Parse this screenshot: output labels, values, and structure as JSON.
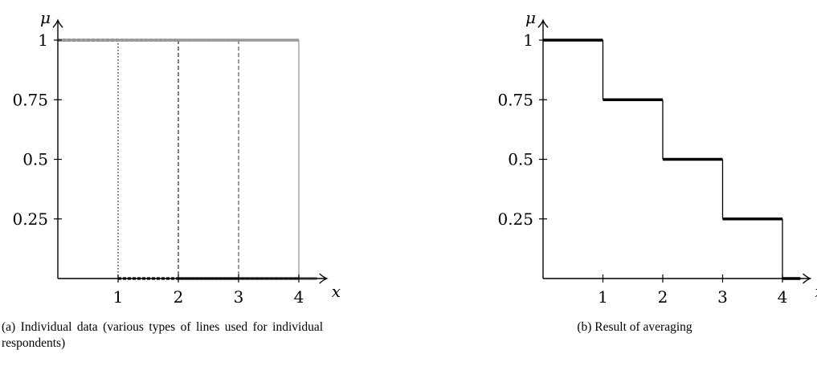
{
  "chart_data": [
    {
      "type": "line",
      "title": "",
      "xlabel": "x",
      "ylabel": "μ",
      "xlim": [
        0,
        4.45
      ],
      "ylim": [
        0,
        1.08
      ],
      "x_ticks": [
        1,
        2,
        3,
        4
      ],
      "y_ticks": [
        0.25,
        0.5,
        0.75,
        1
      ],
      "x_tick_labels": [
        "1",
        "2",
        "3",
        "4"
      ],
      "y_tick_labels": [
        "0.25",
        "0.5",
        "0.75",
        "1"
      ],
      "grid": false,
      "series": [
        {
          "x": [
            0,
            1,
            1,
            4.3
          ],
          "y": [
            1,
            1,
            0,
            0
          ],
          "color": "#111111",
          "style": "dotted"
        },
        {
          "x": [
            0,
            2,
            2,
            4.3
          ],
          "y": [
            1,
            1,
            0,
            0
          ],
          "color": "#222222",
          "style": "dashed"
        },
        {
          "x": [
            0,
            3,
            3,
            4.3
          ],
          "y": [
            1,
            1,
            0,
            0
          ],
          "color": "#555555",
          "style": "dashed"
        },
        {
          "x": [
            0,
            4,
            4,
            4.3
          ],
          "y": [
            1,
            1,
            0,
            0
          ],
          "color": "#999999",
          "style": "solid"
        }
      ],
      "caption": "(a) Individual data (various types of lines used for individual respondents)"
    },
    {
      "type": "line",
      "title": "",
      "xlabel": "x",
      "ylabel": "μ",
      "xlim": [
        0,
        4.45
      ],
      "ylim": [
        0,
        1.08
      ],
      "x_ticks": [
        1,
        2,
        3,
        4
      ],
      "y_ticks": [
        0.25,
        0.5,
        0.75,
        1
      ],
      "x_tick_labels": [
        "1",
        "2",
        "3",
        "4"
      ],
      "y_tick_labels": [
        "0.25",
        "0.5",
        "0.75",
        "1"
      ],
      "grid": false,
      "series": [
        {
          "x": [
            0,
            1,
            1,
            2,
            2,
            3,
            3,
            4,
            4,
            4.3
          ],
          "y": [
            1,
            1,
            0.75,
            0.75,
            0.5,
            0.5,
            0.25,
            0.25,
            0,
            0
          ],
          "color": "#000000",
          "style": "solid"
        }
      ],
      "caption": "(b) Result of averaging"
    }
  ]
}
